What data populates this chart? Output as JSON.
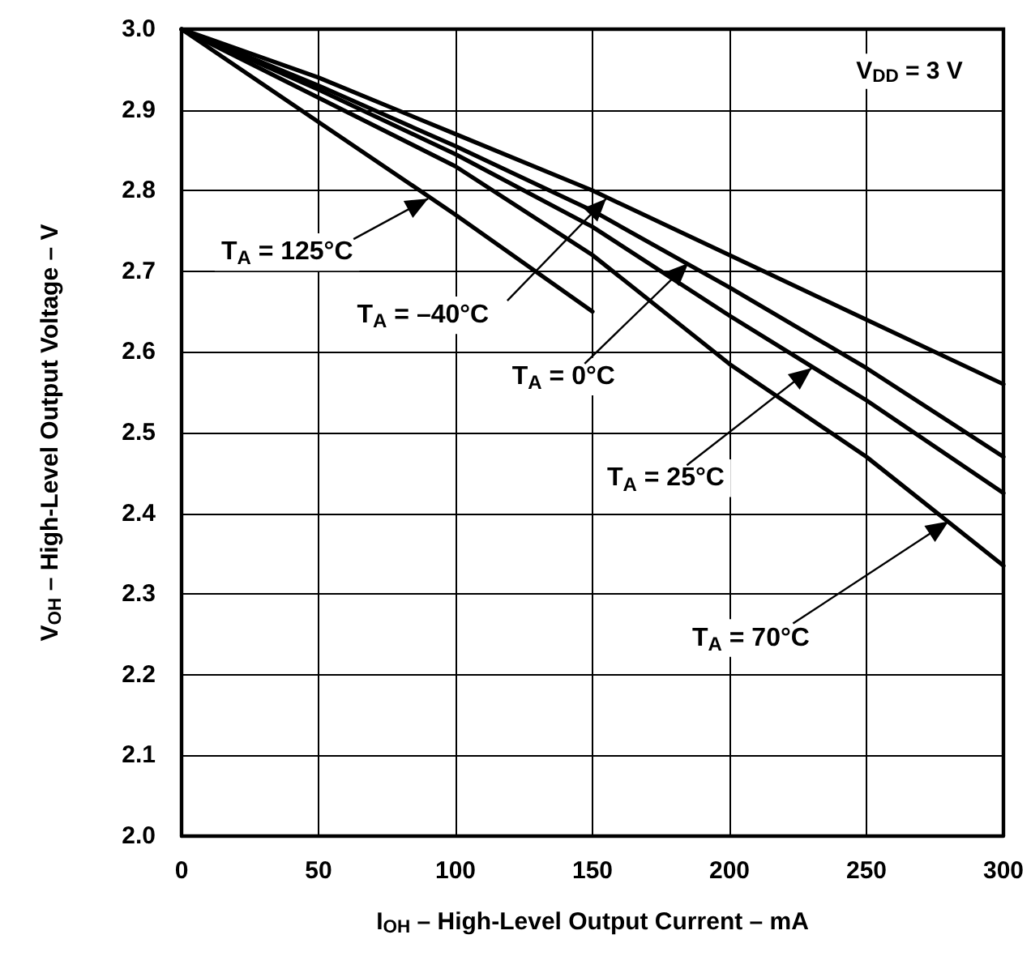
{
  "chart_data": {
    "type": "line",
    "xlabel": "I$_{OH}$ – High-Level Output Current – mA",
    "ylabel": "V$_{OH}$ – High-Level Output Voltage – V",
    "x": [
      0,
      50,
      100,
      150,
      200,
      250,
      300
    ],
    "series": [
      {
        "color": "#000000",
        "x": [
          0,
          50,
          100,
          150
        ],
        "values": [
          3.0,
          2.885,
          2.77,
          2.65
        ]
      },
      {
        "color": "#000000",
        "values": [
          3.0,
          2.94,
          2.87,
          2.8,
          2.72,
          2.64,
          2.56
        ]
      },
      {
        "color": "#000000",
        "values": [
          3.0,
          2.93,
          2.855,
          2.775,
          2.68,
          2.58,
          2.47
        ]
      },
      {
        "color": "#000000",
        "values": [
          3.0,
          2.925,
          2.845,
          2.755,
          2.645,
          2.54,
          2.425
        ]
      },
      {
        "color": "#000000",
        "values": [
          3.0,
          2.915,
          2.83,
          2.72,
          2.585,
          2.47,
          2.335
        ]
      }
    ],
    "annotations": [
      "V$_{DD}$ = 3 V",
      {
        "text": "T$_{A}$ = 125°C",
        "x": 90,
        "y": 2.79
      },
      {
        "text": "T$_{A}$ = –40°C",
        "x": 155,
        "y": 2.79
      },
      {
        "text": "T$_{A}$ = 0°C",
        "x": 185,
        "y": 2.71
      },
      {
        "text": "T$_{A}$ = 25°C",
        "x": 230,
        "y": 2.58
      },
      {
        "text": "T$_{A}$ = 70°C",
        "x": 280,
        "y": 2.39
      }
    ],
    "xlim": [
      0,
      300
    ],
    "xticks": [
      0,
      50,
      100,
      150,
      200,
      250,
      300
    ],
    "ylim": [
      2.0,
      3.0
    ],
    "yticks": [
      {
        "value": 2.0,
        "label": "2.0"
      },
      2.1,
      2.2,
      2.3,
      2.4,
      2.5,
      2.6,
      2.7,
      2.8,
      2.9,
      {
        "value": 3.0,
        "label": "3.0"
      }
    ],
    "grid": true,
    "marker": "none",
    "line_style": "solid"
  }
}
